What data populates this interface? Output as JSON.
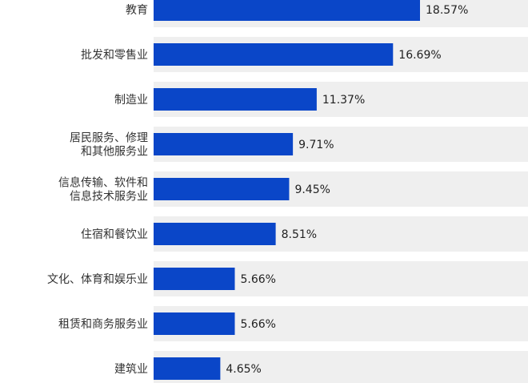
{
  "chart_data": {
    "type": "bar",
    "orientation": "horizontal",
    "title": "",
    "xlabel": "",
    "ylabel": "",
    "grid": false,
    "xlim": [
      0,
      25
    ],
    "categories": [
      [
        "教育"
      ],
      [
        "批发和零售业"
      ],
      [
        "制造业"
      ],
      [
        "居民服务、修理",
        "和其他服务业"
      ],
      [
        "信息传输、软件和",
        "信息技术服务业"
      ],
      [
        "住宿和餐饮业"
      ],
      [
        "文化、体育和娱乐业"
      ],
      [
        "租赁和商务服务业"
      ],
      [
        "建筑业"
      ]
    ],
    "values": [
      18.57,
      16.69,
      11.37,
      9.71,
      9.45,
      8.51,
      5.66,
      5.66,
      4.65
    ],
    "value_labels": [
      "18.57%",
      "16.69%",
      "11.37%",
      "9.71%",
      "9.45%",
      "8.51%",
      "5.66%",
      "5.66%",
      "4.65%"
    ],
    "colors": {
      "bar": "#0a46c8",
      "row_background": "#efefef",
      "label_text": "#333333",
      "value_text": "#222222"
    }
  }
}
